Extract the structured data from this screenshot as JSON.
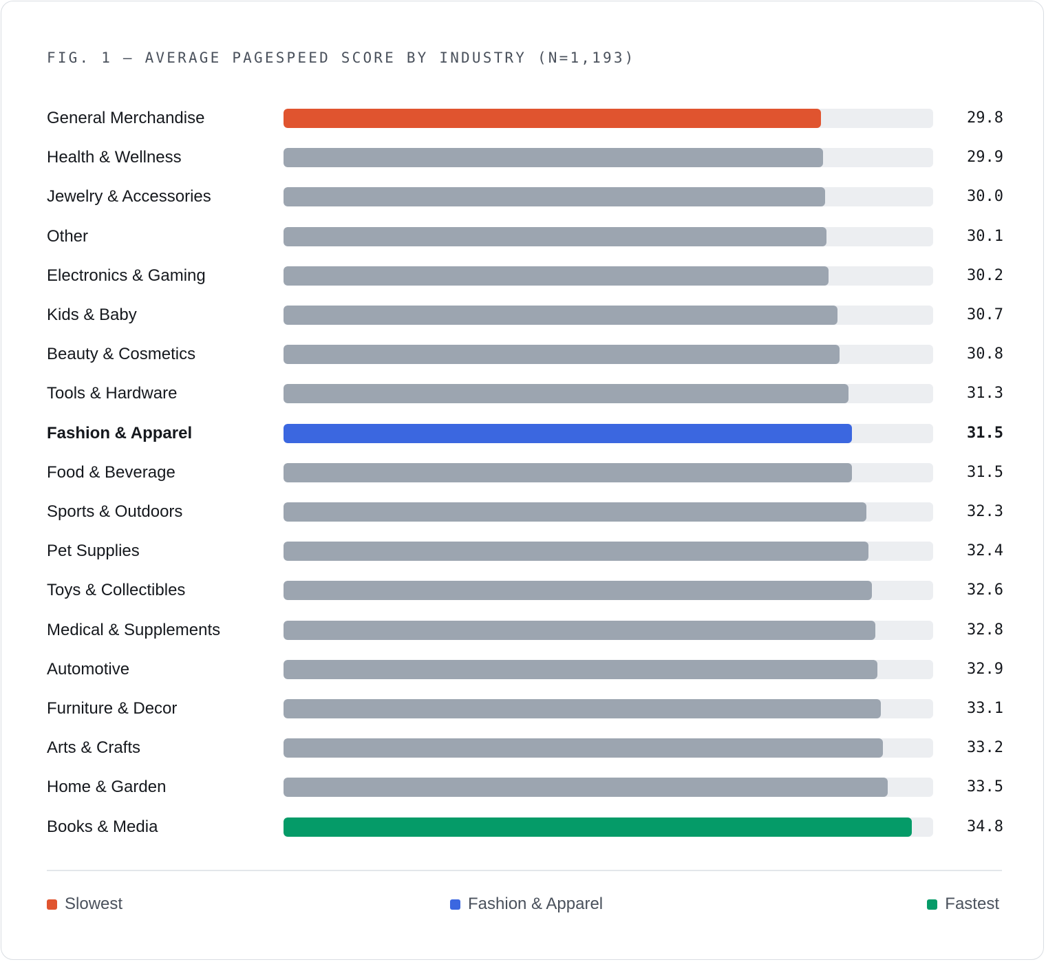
{
  "colors": {
    "slowest": "#e0542f",
    "highlight": "#3b67e0",
    "fastest": "#059b68",
    "default": "#9ca5b0",
    "track": "#eceef1"
  },
  "chart_data": {
    "type": "bar",
    "orientation": "horizontal",
    "title": "FIG. 1 — AVERAGE PAGESPEED SCORE BY INDUSTRY (N=1,193)",
    "xlim": [
      0,
      36
    ],
    "grid": false,
    "legend_position": "bottom",
    "categories": [
      "General Merchandise",
      "Health & Wellness",
      "Jewelry & Accessories",
      "Other",
      "Electronics & Gaming",
      "Kids & Baby",
      "Beauty & Cosmetics",
      "Tools & Hardware",
      "Fashion & Apparel",
      "Food & Beverage",
      "Sports & Outdoors",
      "Pet Supplies",
      "Toys & Collectibles",
      "Medical & Supplements",
      "Automotive",
      "Furniture & Decor",
      "Arts & Crafts",
      "Home & Garden",
      "Books & Media"
    ],
    "values": [
      29.8,
      29.9,
      30.0,
      30.1,
      30.2,
      30.7,
      30.8,
      31.3,
      31.5,
      31.5,
      32.3,
      32.4,
      32.6,
      32.8,
      32.9,
      33.1,
      33.2,
      33.5,
      34.8
    ],
    "value_labels": [
      "29.8",
      "29.9",
      "30.0",
      "30.1",
      "30.2",
      "30.7",
      "30.8",
      "31.3",
      "31.5",
      "31.5",
      "32.3",
      "32.4",
      "32.6",
      "32.8",
      "32.9",
      "33.1",
      "33.2",
      "33.5",
      "34.8"
    ],
    "highlights": {
      "General Merchandise": "slowest",
      "Fashion & Apparel": "highlight",
      "Books & Media": "fastest"
    },
    "legend": [
      {
        "label": "Slowest",
        "color": "#e0542f"
      },
      {
        "label": "Fashion & Apparel",
        "color": "#3b67e0"
      },
      {
        "label": "Fastest",
        "color": "#059b68"
      }
    ]
  }
}
